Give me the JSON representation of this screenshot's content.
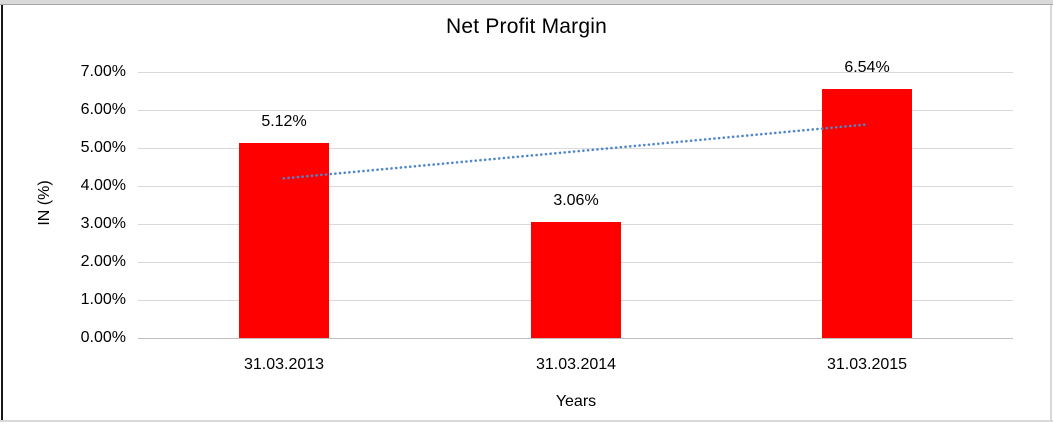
{
  "chart_data": {
    "type": "bar",
    "title": "Net Profit Margin",
    "xlabel": "Years",
    "ylabel": "IN (%)",
    "categories": [
      "31.03.2013",
      "31.03.2014",
      "31.03.2015"
    ],
    "series": [
      {
        "name": "Net Profit Margin",
        "values": [
          5.12,
          3.06,
          6.54
        ],
        "color": "#FF0000"
      }
    ],
    "data_labels": [
      "5.12%",
      "3.06%",
      "6.54%"
    ],
    "ylim": [
      0,
      7
    ],
    "ytick_step": 1,
    "ytick_labels": [
      "0.00%",
      "1.00%",
      "2.00%",
      "3.00%",
      "4.00%",
      "5.00%",
      "6.00%",
      "7.00%"
    ],
    "grid": true,
    "legend": "none",
    "trendline": {
      "type": "linear",
      "style": "dotted",
      "color": "#4F86C7",
      "start": {
        "category_index": 0,
        "value": 4.2
      },
      "end": {
        "category_index": 2,
        "value": 5.62
      }
    }
  },
  "colors": {
    "bar": "#FF0000",
    "trendline": "#4F86C7",
    "gridline": "#D9D9D9",
    "axis_line": "#BFBFBF",
    "text": "#000000",
    "frame_strip": "#D9D9D9",
    "frame_left_border": "#161616"
  }
}
